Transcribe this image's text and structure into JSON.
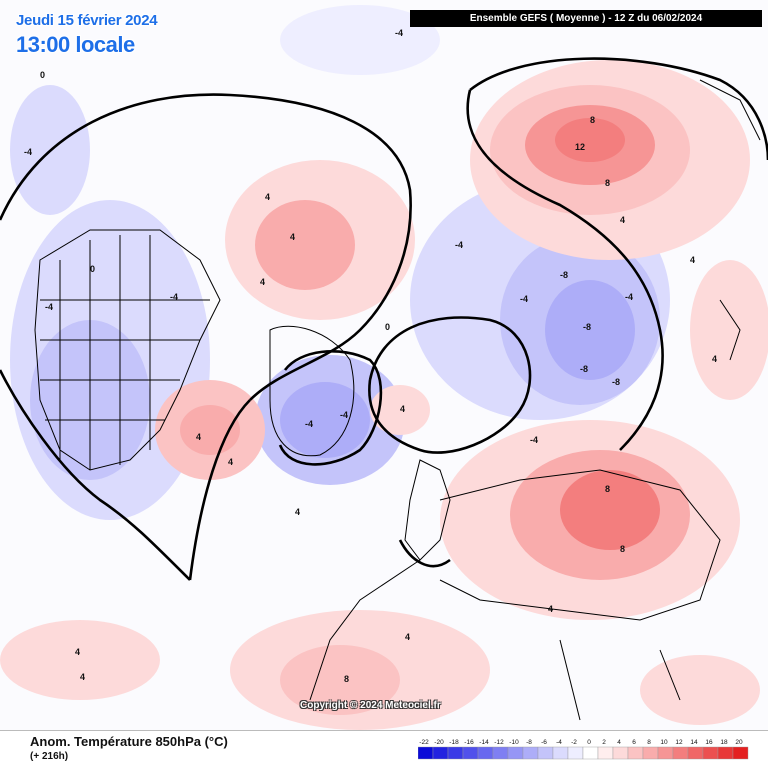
{
  "header": {
    "date_line": "Jeudi 15 février 2024",
    "time_line": "13:00 locale",
    "run_banner": "Ensemble GEFS  ( Moyenne )  -  12 Z du 06/02/2024"
  },
  "footer": {
    "variable_title": "Anom. Température 850hPa (°C)",
    "lead_time": "(+ 216h)",
    "copyright": "Copyright © 2024 Meteociel.fr"
  },
  "scale": {
    "labels": [
      "-22",
      "-20",
      "-18",
      "-16",
      "-14",
      "-12",
      "-10",
      "-8",
      "-6",
      "-4",
      "-2",
      "0",
      "2",
      "4",
      "6",
      "8",
      "10",
      "12",
      "14",
      "16",
      "18",
      "20"
    ],
    "colors": [
      "#0b0bd8",
      "#2222e0",
      "#3a3ae6",
      "#5151eb",
      "#6868ef",
      "#7f7ff2",
      "#9696f5",
      "#adadf8",
      "#c4c4fa",
      "#dbdbfd",
      "#eeeeff",
      "#ffffff",
      "#ffeeee",
      "#fddada",
      "#fbc3c3",
      "#f9acac",
      "#f69595",
      "#f37e7e",
      "#f06767",
      "#ec5050",
      "#e83838",
      "#e42020"
    ]
  },
  "map": {
    "contour_labels": [
      "0",
      "-4",
      "-4",
      "-4",
      "4",
      "4",
      "4",
      "4",
      "12",
      "8",
      "8",
      "4",
      "-4",
      "-4",
      "-8",
      "-8",
      "-8",
      "-8",
      "-4",
      "-4",
      "4",
      "4",
      "4",
      "4",
      "8",
      "8",
      "8",
      "-4",
      "-4",
      "4",
      "4",
      "-4",
      "0",
      "0",
      "4",
      "4",
      "4"
    ]
  }
}
